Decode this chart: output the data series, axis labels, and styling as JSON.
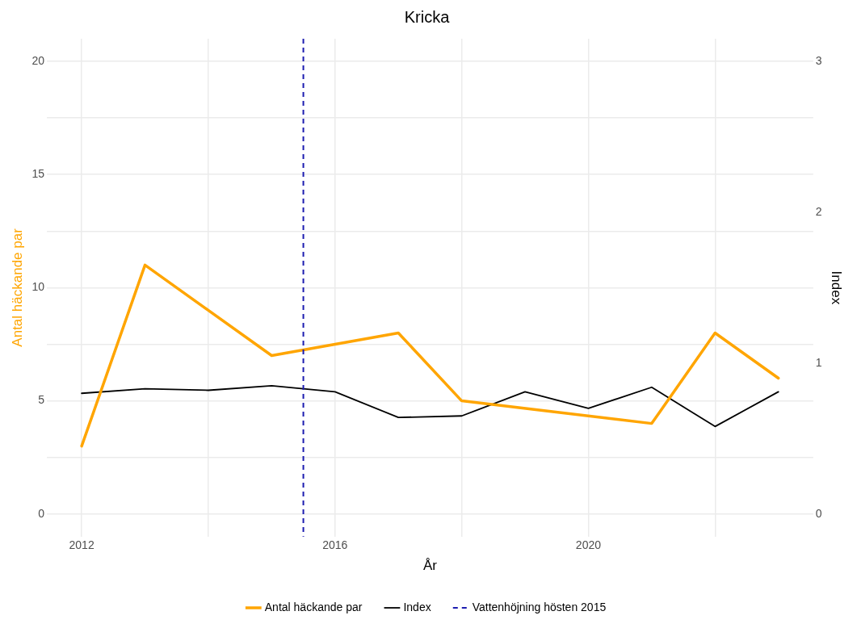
{
  "chart_data": {
    "type": "line",
    "title": "Kricka",
    "xlabel": "År",
    "ylabel": "Antal häckande par",
    "y2label": "Index",
    "xlim": [
      2011.45,
      2023.55
    ],
    "xticks": [
      2012,
      {
        "value": 2014,
        "label": null
      },
      2016,
      {
        "value": 2018,
        "label": null
      },
      2020,
      {
        "value": 2022,
        "label": null
      }
    ],
    "ylim": [
      -1,
      21
    ],
    "yticks": [
      0,
      {
        "value": 2.5,
        "label": null
      },
      5,
      {
        "value": 7.5,
        "label": null
      },
      10,
      {
        "value": 12.5,
        "label": null
      },
      15,
      {
        "value": 17.5,
        "label": null
      },
      20
    ],
    "y2lim": [
      -0.15,
      3.15
    ],
    "y2ticks": [
      0,
      1,
      2,
      3
    ],
    "series": [
      {
        "name": "Antal häckande par",
        "color": "#ffa500",
        "x": [
          2012,
          2013,
          2015,
          2017,
          2018,
          2021,
          2022,
          2023
        ],
        "values": [
          3,
          11,
          7,
          8,
          5,
          4,
          8,
          6
        ]
      },
      {
        "name": "Index",
        "color": "#000000",
        "axis": "y2",
        "x": [
          2012,
          2013,
          2014,
          2015,
          2016,
          2017,
          2018,
          2019,
          2020,
          2021,
          2022,
          2023
        ],
        "values": [
          0.8,
          0.83,
          0.82,
          0.85,
          0.81,
          0.64,
          0.65,
          0.81,
          0.7,
          0.84,
          0.58,
          0.81
        ]
      }
    ],
    "ref_lines": [
      {
        "axis": "x",
        "value": 2015.5,
        "label": "Vattenhöjning hösten 2015",
        "color": "#1c1cb0",
        "line_style": "dashed"
      }
    ],
    "grid": true,
    "legend": "bottom",
    "marker": "none",
    "line_style": "solid"
  }
}
